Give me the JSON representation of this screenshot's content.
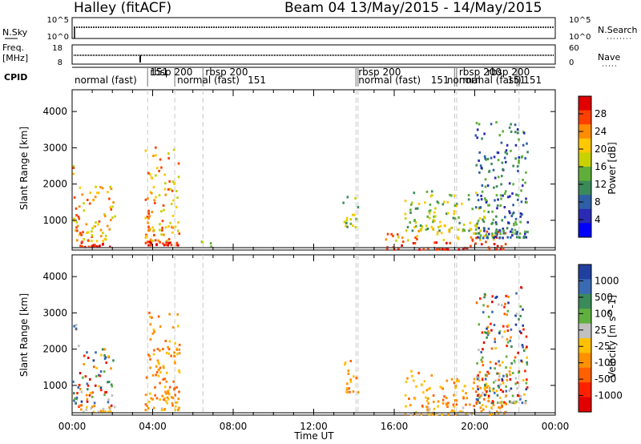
{
  "header": {
    "title": "Halley (fitACF)",
    "beam_info": "Beam 04 13/May/2015 - 14/May/2015"
  },
  "top_panels": {
    "nsky_label": "N.Sky",
    "nsky_ticks": [
      "10^5",
      "10^0"
    ],
    "nsearch_label": "N.Search",
    "nsearch_ticks": [
      "10^5",
      "10^0"
    ],
    "freq_label_1": "Freq.",
    "freq_label_2": "[MHz]",
    "freq_ticks": [
      "18",
      "8"
    ],
    "nave_label": "Nave",
    "nave_ticks": [
      "60",
      "0"
    ],
    "cpid_label": "CPID"
  },
  "cpid": {
    "segments": [
      {
        "label": "normal (fast)",
        "start": 0.0
      },
      {
        "label": "rbsp 200",
        "start": 3.75
      },
      {
        "label": "151",
        "start": 3.75
      },
      {
        "label": "normal (fast)",
        "start": 5.1
      },
      {
        "label": "rbsp 200",
        "start": 6.5
      },
      {
        "label": "151",
        "start": 8.6
      },
      {
        "label": "rbsp 200",
        "start": 14.1
      },
      {
        "label": "normal (fast)",
        "start": 14.1
      },
      {
        "label": "151",
        "start": 17.7
      },
      {
        "label": "normal",
        "start": 18.5
      },
      {
        "label": "rbsp 200",
        "start": 19.1
      },
      {
        "label": "normal (fast)",
        "start": 19.1
      },
      {
        "label": "rbsp 200",
        "start": 20.5
      },
      {
        "label": "151",
        "start": 21.5
      },
      {
        "label": "151",
        "start": 22.3
      }
    ],
    "dividers": [
      3.75,
      5.1,
      6.5,
      14.1,
      14.2,
      19.0,
      19.1,
      22.1,
      22.2
    ]
  },
  "chart_data": [
    {
      "type": "heatmap",
      "name": "power",
      "xlabel": "",
      "ylabel": "Slant Range [km]",
      "xlim": [
        0,
        24
      ],
      "ylim": [
        180,
        4600
      ],
      "yticks": [
        1000,
        2000,
        3000,
        4000
      ],
      "colorbar_label": "Power [dB]",
      "colorbar_ticks": [
        "28",
        "24",
        "20",
        "16",
        "12",
        "8",
        "4"
      ],
      "colorbar_colors": [
        "#e00000",
        "#ff4000",
        "#ff8c00",
        "#ffc800",
        "#c8d200",
        "#5fae3a",
        "#3b8a5a",
        "#2e5fa6",
        "#2a2ab4",
        "#0000ff"
      ],
      "blobs": [
        {
          "t": [
            0.0,
            0.3
          ],
          "r": [
            400,
            2700
          ],
          "level": "high"
        },
        {
          "t": [
            0.3,
            2.1
          ],
          "r": [
            250,
            2000
          ],
          "level": "high"
        },
        {
          "t": [
            3.6,
            5.3
          ],
          "r": [
            300,
            3000
          ],
          "level": "high"
        },
        {
          "t": [
            6.3,
            7.0
          ],
          "r": [
            200,
            450
          ],
          "level": "medium"
        },
        {
          "t": [
            13.4,
            14.2
          ],
          "r": [
            800,
            1700
          ],
          "level": "medium"
        },
        {
          "t": [
            15.5,
            21.6
          ],
          "r": [
            180,
            700
          ],
          "level": "high"
        },
        {
          "t": [
            16.5,
            20.5
          ],
          "r": [
            700,
            1800
          ],
          "level": "medium"
        },
        {
          "t": [
            20.0,
            22.6
          ],
          "r": [
            500,
            3700
          ],
          "level": "low"
        }
      ]
    },
    {
      "type": "heatmap",
      "name": "velocity",
      "xlabel": "Time UT",
      "ylabel": "Slant Range [km]",
      "xlim": [
        0,
        24
      ],
      "ylim": [
        180,
        4600
      ],
      "xticks": [
        "00:00",
        "04:00",
        "08:00",
        "12:00",
        "16:00",
        "20:00",
        "00:00"
      ],
      "yticks": [
        1000,
        2000,
        3000,
        4000
      ],
      "colorbar_label": "Velocity [m s^-1]",
      "colorbar_ticks": [
        "1000",
        "500",
        "100",
        "25",
        "-25",
        "-100",
        "-500",
        "-1000"
      ],
      "colorbar_colors": [
        "#2040a0",
        "#3a6ab4",
        "#3b8a5a",
        "#60b040",
        "#c0c0c0",
        "#ffc000",
        "#ff9000",
        "#ff6000",
        "#ff2000",
        "#e00000"
      ],
      "blobs": [
        {
          "t": [
            0.0,
            0.3
          ],
          "r": [
            400,
            2700
          ],
          "level": "mixed"
        },
        {
          "t": [
            0.3,
            2.1
          ],
          "r": [
            250,
            2000
          ],
          "level": "mixed"
        },
        {
          "t": [
            3.6,
            5.3
          ],
          "r": [
            300,
            3000
          ],
          "level": "negative"
        },
        {
          "t": [
            13.4,
            14.2
          ],
          "r": [
            800,
            1700
          ],
          "level": "negative"
        },
        {
          "t": [
            16.5,
            21.6
          ],
          "r": [
            180,
            1400
          ],
          "level": "negative"
        },
        {
          "t": [
            20.0,
            22.6
          ],
          "r": [
            500,
            3700
          ],
          "level": "mixed"
        }
      ]
    }
  ]
}
